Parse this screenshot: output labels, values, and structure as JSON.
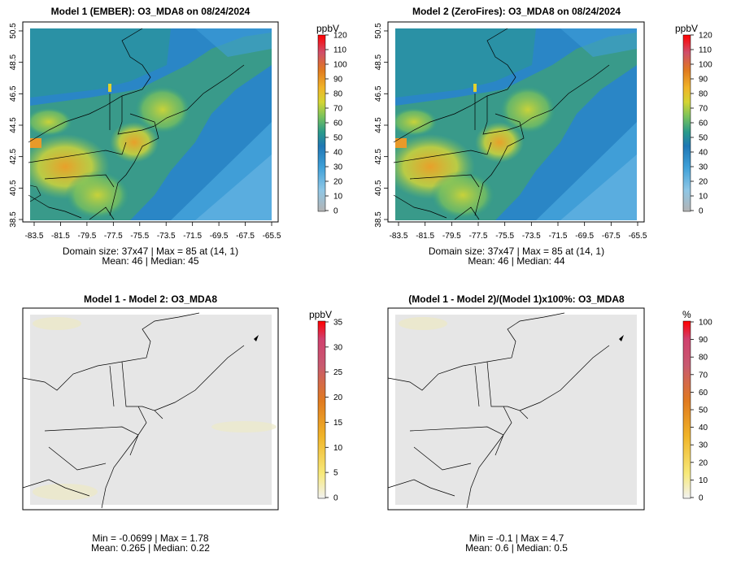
{
  "chart_data": [
    {
      "type": "heatmap",
      "title": "Model 1 (EMBER): O3_MDA8 on 08/24/2024",
      "xlabel": "",
      "ylabel": "",
      "x_ticks": [
        "-83.5",
        "-81.5",
        "-79.5",
        "-77.5",
        "-75.5",
        "-73.5",
        "-71.5",
        "-69.5",
        "-67.5",
        "-65.5"
      ],
      "y_ticks": [
        "38.5",
        "40.5",
        "42.5",
        "44.5",
        "46.5",
        "48.5",
        "50.5"
      ],
      "colorbar": {
        "unit": "ppbV",
        "range": [
          0,
          120
        ],
        "ticks": [
          "0",
          "10",
          "20",
          "30",
          "40",
          "50",
          "60",
          "70",
          "80",
          "90",
          "100",
          "110",
          "120"
        ]
      },
      "stats": {
        "line1": "Domain size: 37x47 | Max = 85 at (14, 1)",
        "line2": "Mean: 46 |  Median: 45"
      }
    },
    {
      "type": "heatmap",
      "title": "Model 2 (ZeroFires): O3_MDA8 on 08/24/2024",
      "xlabel": "",
      "ylabel": "",
      "x_ticks": [
        "-83.5",
        "-81.5",
        "-79.5",
        "-77.5",
        "-75.5",
        "-73.5",
        "-71.5",
        "-69.5",
        "-67.5",
        "-65.5"
      ],
      "y_ticks": [
        "38.5",
        "40.5",
        "42.5",
        "44.5",
        "46.5",
        "48.5",
        "50.5"
      ],
      "colorbar": {
        "unit": "ppbV",
        "range": [
          0,
          120
        ],
        "ticks": [
          "0",
          "10",
          "20",
          "30",
          "40",
          "50",
          "60",
          "70",
          "80",
          "90",
          "100",
          "110",
          "120"
        ]
      },
      "stats": {
        "line1": "Domain size: 37x47 | Max = 85 at (14, 1)",
        "line2": "Mean: 46 |  Median: 44"
      }
    },
    {
      "type": "heatmap",
      "title": "Model 1 - Model 2: O3_MDA8",
      "colorbar": {
        "unit": "ppbV",
        "range": [
          0,
          35
        ],
        "ticks": [
          "0",
          "5",
          "10",
          "15",
          "20",
          "25",
          "30",
          "35"
        ]
      },
      "stats": {
        "line1": "Min = -0.0699 | Max = 1.78",
        "line2": "Mean: 0.265 |  Median: 0.22"
      }
    },
    {
      "type": "heatmap",
      "title": "(Model 1 - Model 2)/(Model 1)x100%: O3_MDA8",
      "colorbar": {
        "unit": "%",
        "range": [
          0,
          100
        ],
        "ticks": [
          "0",
          "10",
          "20",
          "30",
          "40",
          "50",
          "60",
          "70",
          "80",
          "90",
          "100"
        ]
      },
      "stats": {
        "line1": "Min = -0.1 | Max = 4.7",
        "line2": "Mean: 0.6 |  Median: 0.5"
      }
    }
  ],
  "colors": {
    "ozone_scale": [
      "#b3b3b3",
      "#9ad2ee",
      "#5cb3e2",
      "#2a8fcf",
      "#1f77b4",
      "#2a9a8a",
      "#7cc35b",
      "#d4d433",
      "#f0b428",
      "#e8821e",
      "#d94a1a",
      "#d0406e",
      "#ff0000"
    ],
    "diff_scale": [
      "#f0f0f0",
      "#fbf1a3",
      "#f5d84a",
      "#f0b428",
      "#e8821e",
      "#d94a1a",
      "#d0406e",
      "#ff0000"
    ],
    "map_background": "#e6e6e6",
    "frame": "#000000"
  }
}
